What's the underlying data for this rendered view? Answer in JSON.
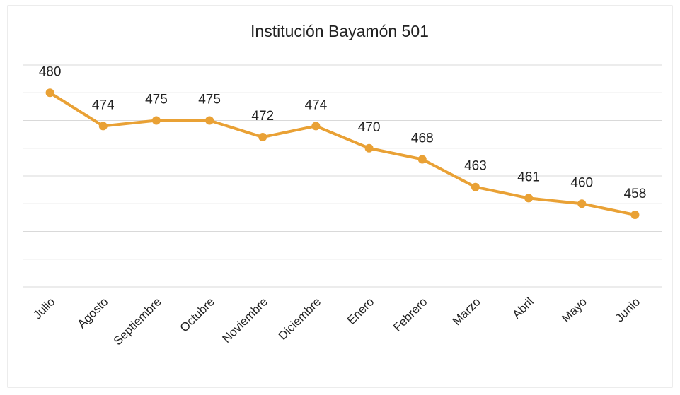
{
  "chart_data": {
    "type": "line",
    "title": "Institución Bayamón 501",
    "categories": [
      "Julio",
      "Agosto",
      "Septiembre",
      "Octubre",
      "Noviembre",
      "Diciembre",
      "Enero",
      "Febrero",
      "Marzo",
      "Abril",
      "Mayo",
      "Junio"
    ],
    "values": [
      480,
      474,
      475,
      475,
      472,
      474,
      470,
      468,
      463,
      461,
      460,
      458
    ],
    "color": "#e9a135",
    "ylim": [
      445,
      485
    ],
    "yticks": [
      445,
      450,
      455,
      460,
      465,
      470,
      475,
      480,
      485
    ],
    "grid": true
  }
}
